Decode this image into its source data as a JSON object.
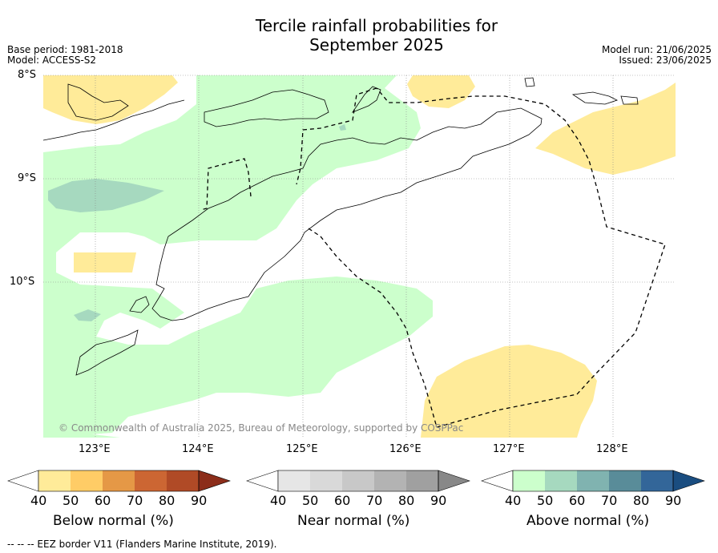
{
  "title_line1": "Tercile rainfall probabilities for",
  "title_line2": "September 2025",
  "base_period": "Base period: 1981-2018",
  "model": "Model: ACCESS-S2",
  "model_run": "Model run: 21/06/2025",
  "issued": "Issued: 23/06/2025",
  "lat_labels": [
    "8°S",
    "9°S",
    "10°S"
  ],
  "lon_labels": [
    "123°E",
    "124°E",
    "125°E",
    "126°E",
    "127°E",
    "128°E"
  ],
  "copyright": "© Commonwealth of Australia 2025, Bureau of Meteorology, supported by COSPPac",
  "colorbars": {
    "below": {
      "label": "Below normal (%)",
      "ticks": [
        "40",
        "50",
        "60",
        "70",
        "80",
        "90"
      ],
      "colors": [
        "#ffffff",
        "#ffeb99",
        "#ffcc66",
        "#e59846",
        "#cc6633",
        "#b04a26",
        "#8c2d1a"
      ]
    },
    "near": {
      "label": "Near normal (%)",
      "ticks": [
        "40",
        "50",
        "60",
        "70",
        "80",
        "90"
      ],
      "colors": [
        "#ffffff",
        "#e6e6e6",
        "#d9d9d9",
        "#c8c8c8",
        "#b3b3b3",
        "#a0a0a0",
        "#888888"
      ]
    },
    "above": {
      "label": "Above normal (%)",
      "ticks": [
        "40",
        "50",
        "60",
        "70",
        "80",
        "90"
      ],
      "colors": [
        "#ffffff",
        "#ccffcc",
        "#a6d9bf",
        "#80b3b0",
        "#598c99",
        "#336699",
        "#1a4d80"
      ]
    }
  },
  "footer": "--  --  -- EEZ border V11 (Flanders Marine Institute, 2019)."
}
